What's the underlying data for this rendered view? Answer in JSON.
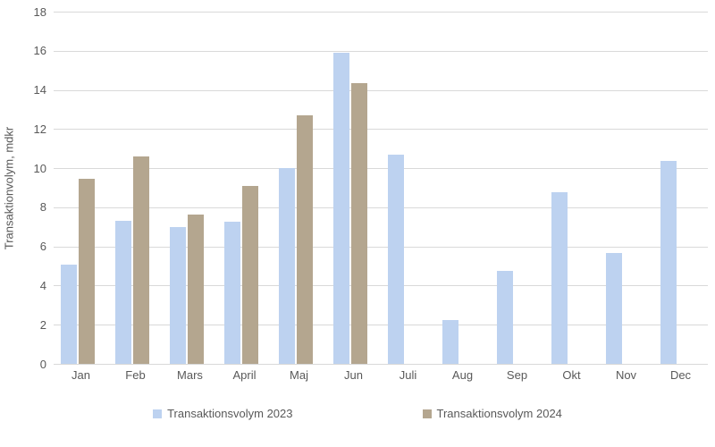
{
  "chart_data": {
    "type": "bar",
    "title": "",
    "ylabel": "Transaktionvolym, mdkr",
    "xlabel": "",
    "ylim": [
      0,
      18
    ],
    "ytick_step": 2,
    "grid": true,
    "legend_position": "bottom",
    "categories": [
      "Jan",
      "Feb",
      "Mars",
      "April",
      "Maj",
      "Jun",
      "Juli",
      "Aug",
      "Sep",
      "Okt",
      "Nov",
      "Dec"
    ],
    "series": [
      {
        "name": "Transaktionsvolym 2023",
        "color": "#BDD2F0",
        "values": [
          5.05,
          7.3,
          7.0,
          7.25,
          10.0,
          15.9,
          10.7,
          2.25,
          4.75,
          8.75,
          5.65,
          10.35
        ]
      },
      {
        "name": "Transaktionsvolym 2024",
        "color": "#B4A68F",
        "values": [
          9.45,
          10.6,
          7.65,
          9.1,
          12.7,
          14.35,
          null,
          null,
          null,
          null,
          null,
          null
        ]
      }
    ]
  },
  "colors": {
    "gridline": "#d9d9d9",
    "axis_line": "#d9d9d9",
    "text": "#595959",
    "background": "#ffffff"
  }
}
